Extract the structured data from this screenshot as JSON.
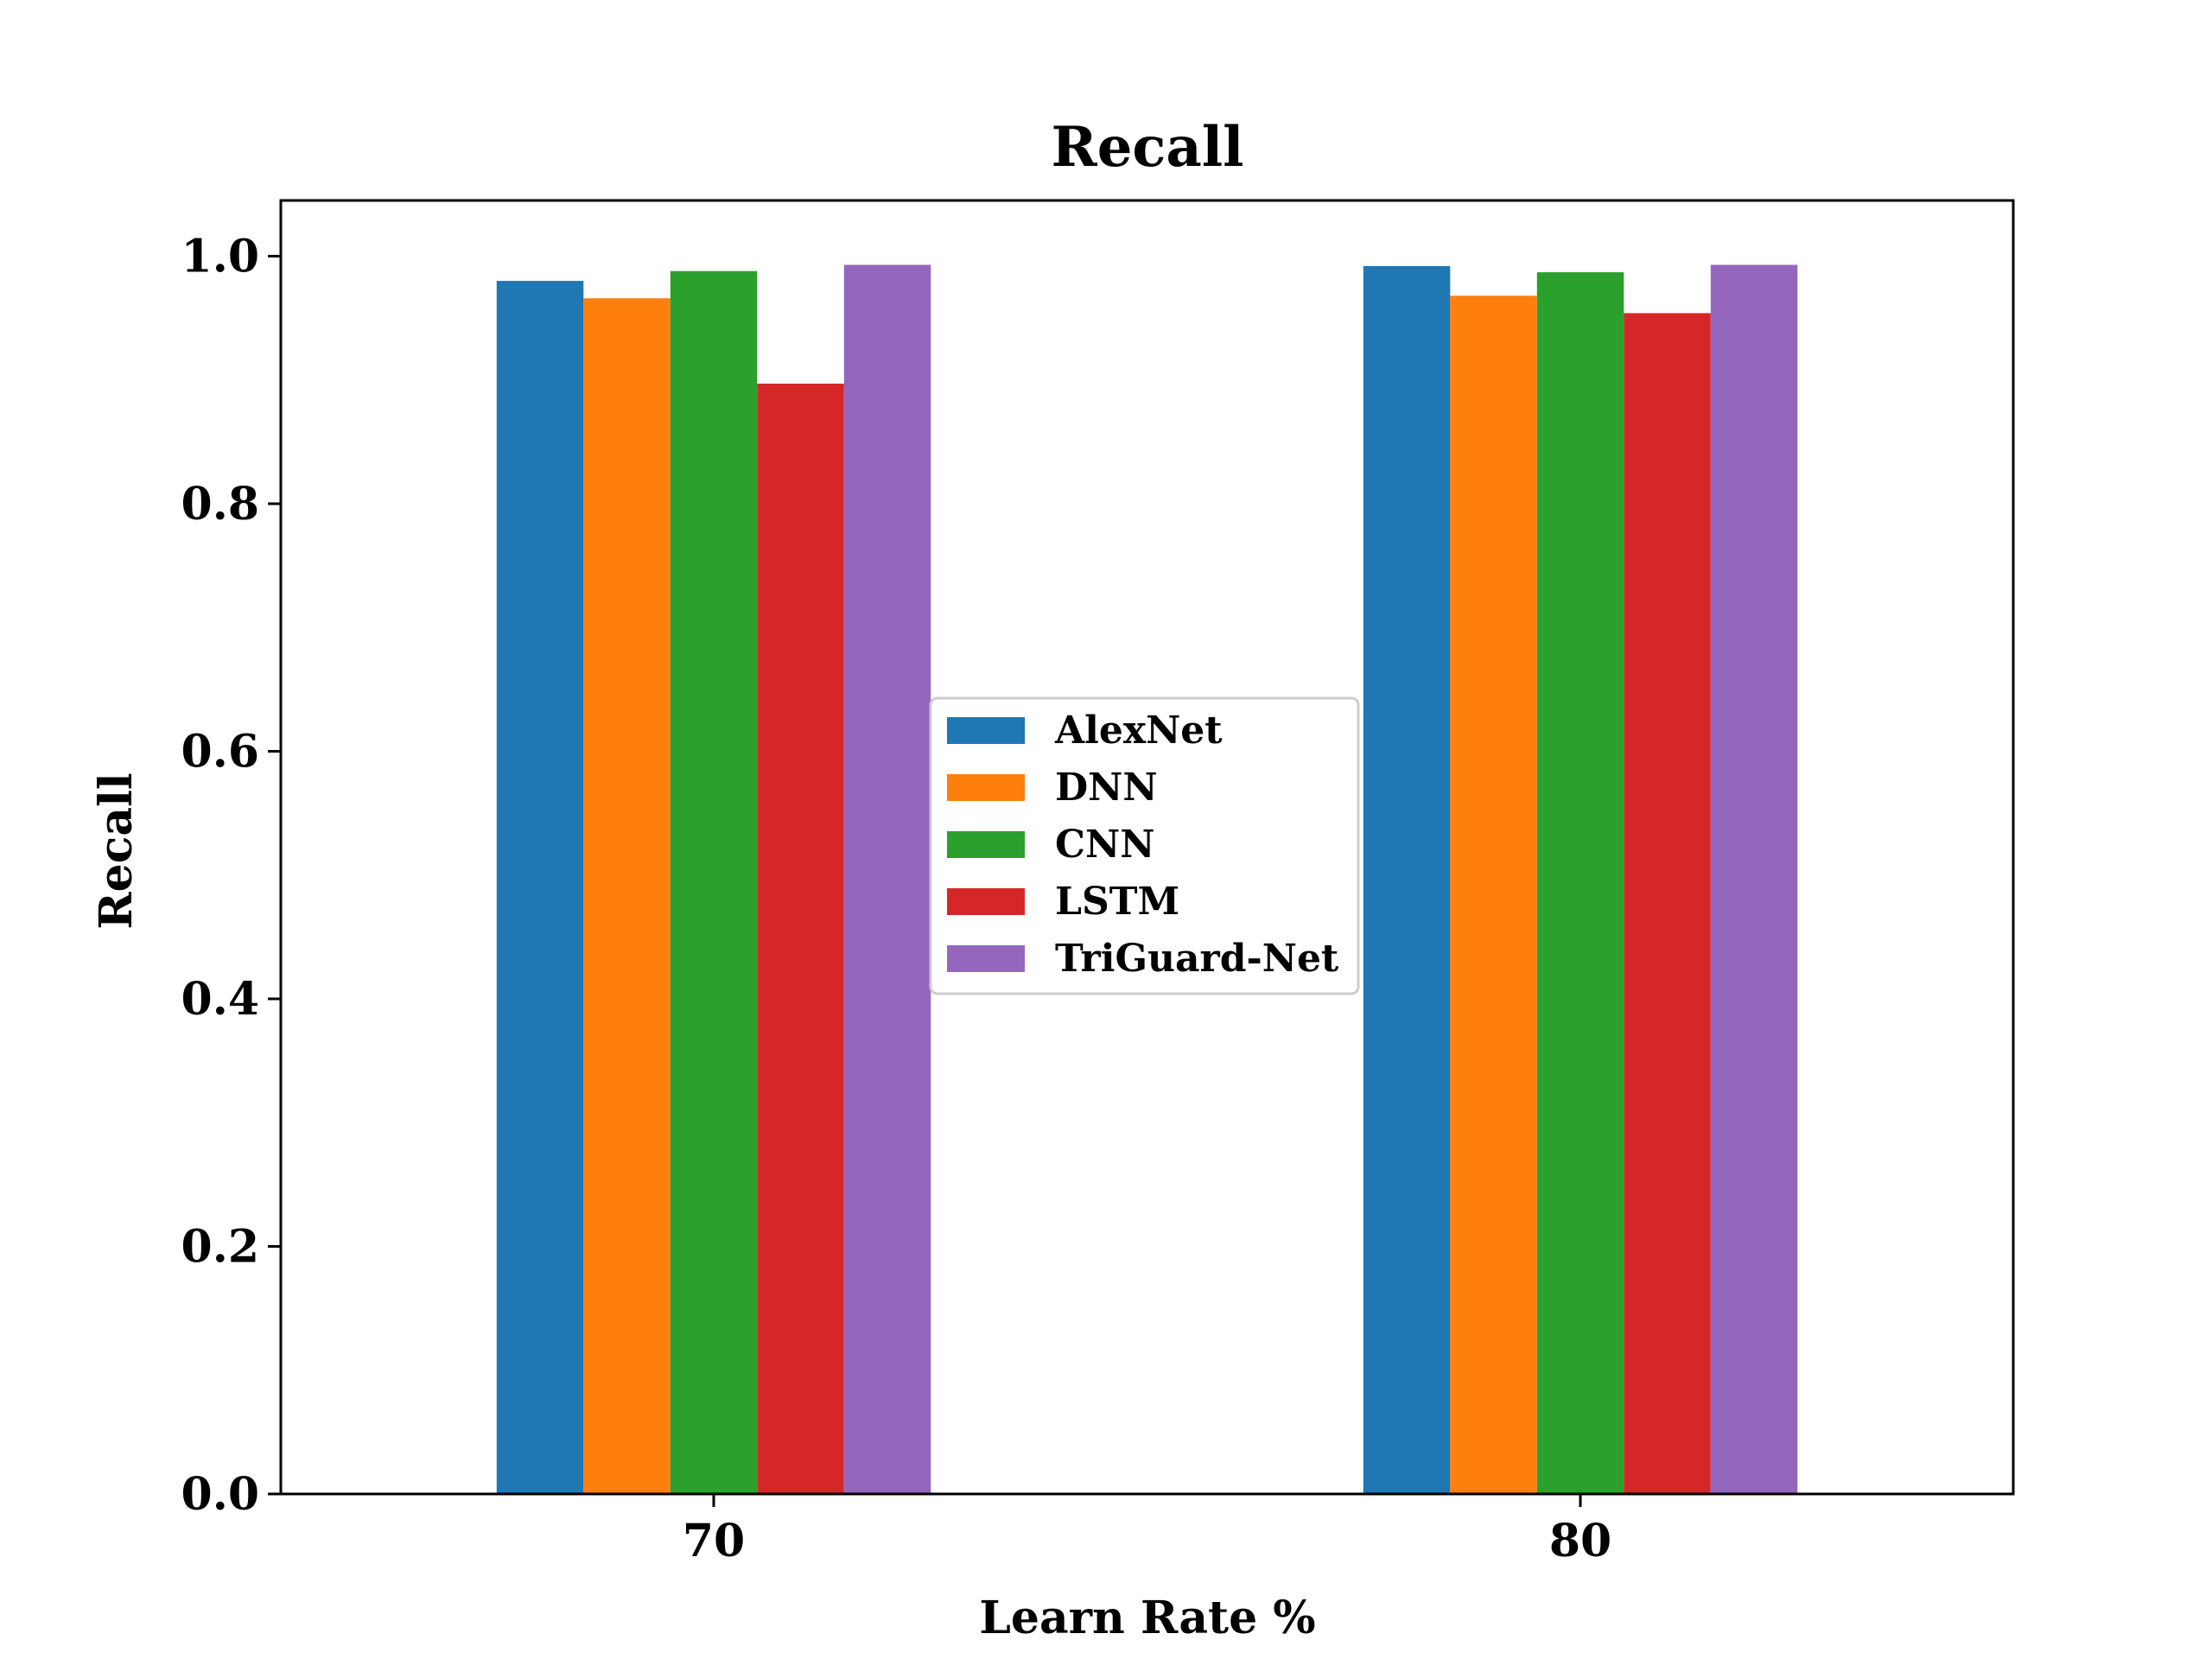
{
  "chart_data": {
    "type": "bar",
    "title": "Recall",
    "xlabel": "Learn Rate %",
    "ylabel": "Recall",
    "categories": [
      "70",
      "80"
    ],
    "ylim": [
      0,
      1.045
    ],
    "yticks": [
      0.0,
      0.2,
      0.4,
      0.6,
      0.8,
      1.0
    ],
    "ytick_labels": [
      "0.0",
      "0.2",
      "0.4",
      "0.6",
      "0.8",
      "1.0"
    ],
    "grid": false,
    "legend_position": "center",
    "series": [
      {
        "name": "AlexNet",
        "color": "#1f77b4",
        "values": [
          0.98,
          0.992
        ]
      },
      {
        "name": "DNN",
        "color": "#ff7f0e",
        "values": [
          0.966,
          0.968
        ]
      },
      {
        "name": "CNN",
        "color": "#2ca02c",
        "values": [
          0.988,
          0.987
        ]
      },
      {
        "name": "LSTM",
        "color": "#d62728",
        "values": [
          0.897,
          0.954
        ]
      },
      {
        "name": "TriGuard-Net",
        "color": "#9467bd",
        "values": [
          0.993,
          0.993
        ]
      }
    ]
  }
}
